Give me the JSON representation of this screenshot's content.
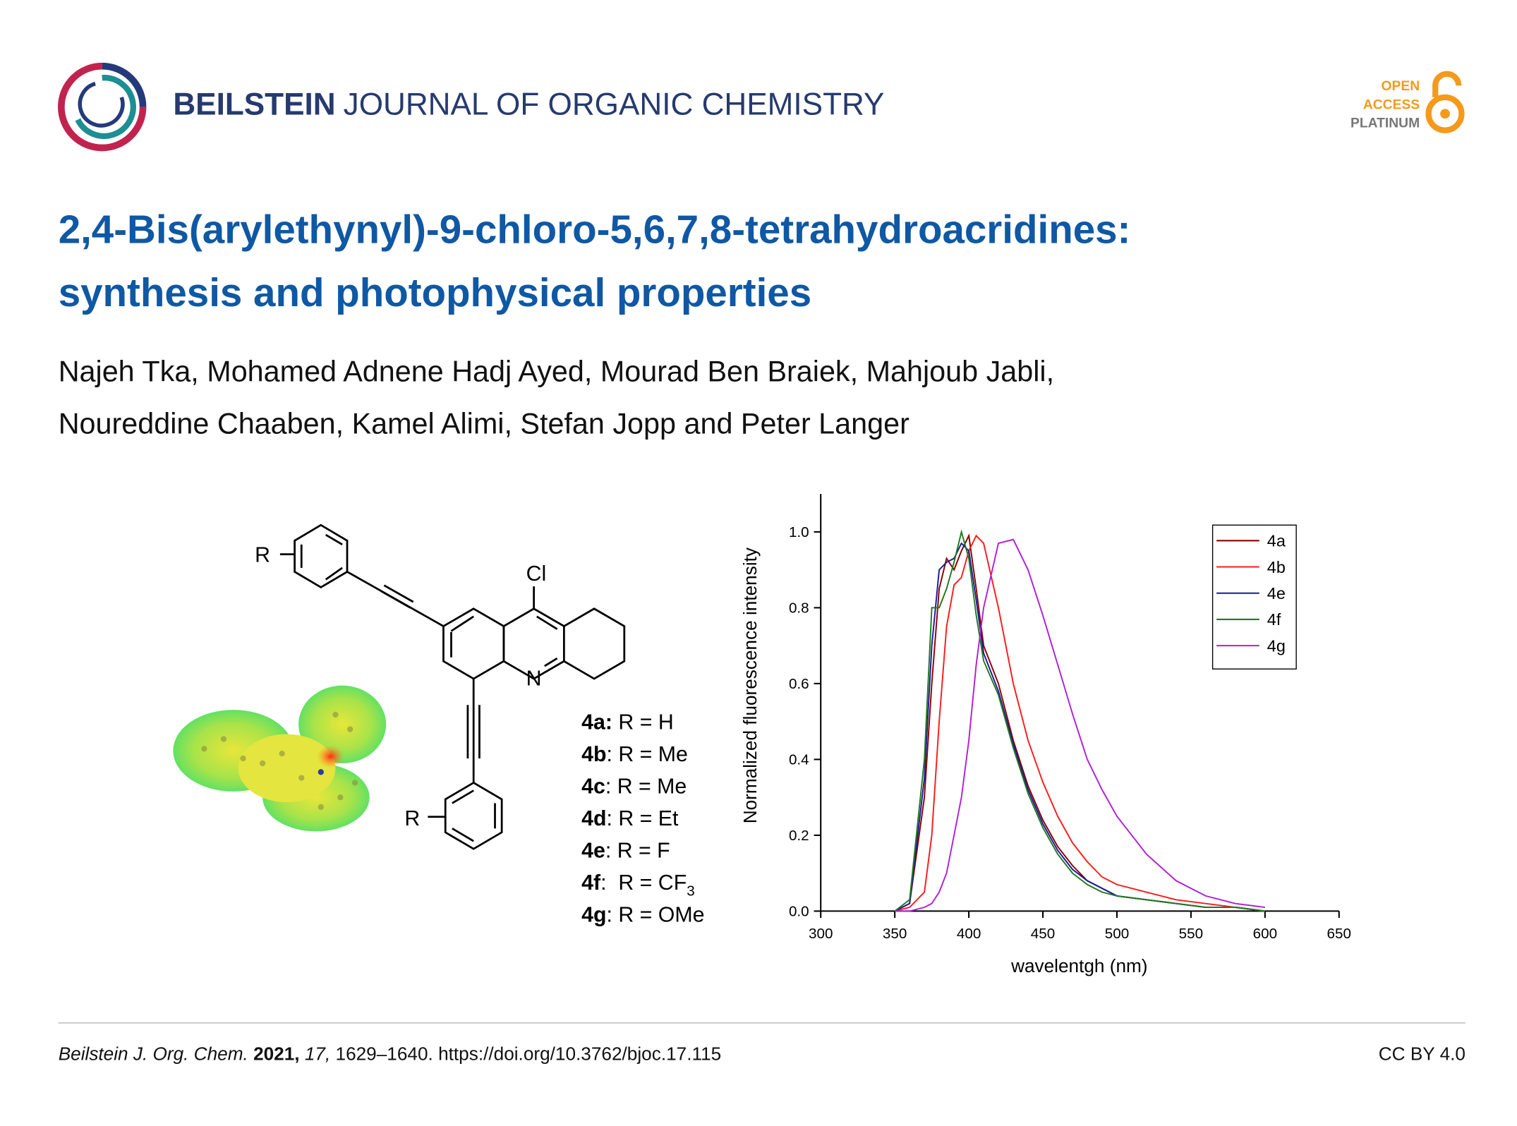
{
  "header": {
    "journal_bold": "BEILSTEIN",
    "journal_rest": "JOURNAL OF ORGANIC CHEMISTRY",
    "badge": [
      "OPEN",
      "ACCESS",
      "PLATINUM"
    ]
  },
  "title": [
    "2,4-Bis(arylethynyl)-9-chloro-5,6,7,8-tetrahydroacridines:",
    "synthesis and photophysical properties"
  ],
  "authors": [
    "Najeh Tka, Mohamed Adnene Hadj Ayed, Mourad Ben Braiek, Mahjoub Jabli,",
    "Noureddine Chaaben, Kamel Alimi, Stefan Jopp and Peter Langer"
  ],
  "structure": {
    "substituent_top": "R",
    "chlorine": "Cl",
    "nitrogen": "N",
    "substituent_bottom": "R"
  },
  "compounds": [
    {
      "id": "4a:",
      "rest": " R = H"
    },
    {
      "id": "4b",
      "rest": ": R = Me"
    },
    {
      "id": "4c",
      "rest": ": R = Me"
    },
    {
      "id": "4d",
      "rest": ": R = Et"
    },
    {
      "id": "4e",
      "rest": ": R = F"
    },
    {
      "id": "4f",
      "rest": ":  R = CF",
      "sub": "3"
    },
    {
      "id": "4g",
      "rest": ": R = OMe"
    }
  ],
  "chart_data": {
    "type": "line",
    "xlabel": "wavelentgh (nm)",
    "ylabel": "Normalized fluorescence intensity",
    "x": [
      350,
      360,
      370,
      375,
      380,
      385,
      390,
      395,
      400,
      405,
      410,
      420,
      430,
      440,
      450,
      460,
      470,
      480,
      490,
      500,
      520,
      540,
      560,
      580,
      600
    ],
    "series": [
      {
        "name": "4a",
        "color": "#8b0000",
        "values": [
          0,
          0.02,
          0.3,
          0.6,
          0.85,
          0.93,
          0.9,
          0.95,
          0.99,
          0.85,
          0.7,
          0.6,
          0.45,
          0.33,
          0.24,
          0.17,
          0.12,
          0.08,
          0.06,
          0.04,
          0.03,
          0.02,
          0.01,
          0.01,
          0
        ]
      },
      {
        "name": "4b",
        "color": "#ff1a1a",
        "values": [
          0,
          0.01,
          0.05,
          0.2,
          0.5,
          0.75,
          0.86,
          0.88,
          0.95,
          0.99,
          0.97,
          0.8,
          0.6,
          0.45,
          0.34,
          0.25,
          0.18,
          0.13,
          0.09,
          0.07,
          0.05,
          0.03,
          0.02,
          0.01,
          0
        ]
      },
      {
        "name": "4e",
        "color": "#1a1a9c",
        "values": [
          0,
          0.02,
          0.35,
          0.7,
          0.9,
          0.92,
          0.93,
          0.97,
          0.95,
          0.82,
          0.68,
          0.58,
          0.44,
          0.32,
          0.23,
          0.16,
          0.11,
          0.08,
          0.06,
          0.04,
          0.03,
          0.02,
          0.01,
          0.01,
          0
        ]
      },
      {
        "name": "4f",
        "color": "#1f7a1f",
        "values": [
          0,
          0.03,
          0.4,
          0.8,
          0.8,
          0.85,
          0.92,
          1.0,
          0.93,
          0.78,
          0.66,
          0.57,
          0.43,
          0.31,
          0.22,
          0.15,
          0.1,
          0.07,
          0.05,
          0.04,
          0.03,
          0.02,
          0.01,
          0.01,
          0
        ]
      },
      {
        "name": "4g",
        "color": "#b01fd8",
        "values": [
          0,
          0,
          0.01,
          0.02,
          0.05,
          0.1,
          0.2,
          0.3,
          0.45,
          0.65,
          0.8,
          0.97,
          0.98,
          0.9,
          0.78,
          0.65,
          0.52,
          0.4,
          0.32,
          0.25,
          0.15,
          0.08,
          0.04,
          0.02,
          0.01
        ]
      }
    ],
    "xlim": [
      300,
      650
    ],
    "xticks": [
      300,
      350,
      400,
      450,
      500,
      550,
      600,
      650
    ],
    "ylim": [
      0,
      1.1
    ],
    "yticks": [
      {
        "value": 0,
        "label": "0.0"
      },
      0.2,
      0.4,
      0.6,
      0.8,
      {
        "value": 1,
        "label": "1.0"
      }
    ],
    "legend": "upper right"
  },
  "footer": {
    "journal": "Beilstein J. Org. Chem.",
    "year": "2021,",
    "volume": "17,",
    "pages": "1629–1640.",
    "doi": "https://doi.org/10.3762/bjoc.17.115",
    "license": "CC BY 4.0"
  }
}
